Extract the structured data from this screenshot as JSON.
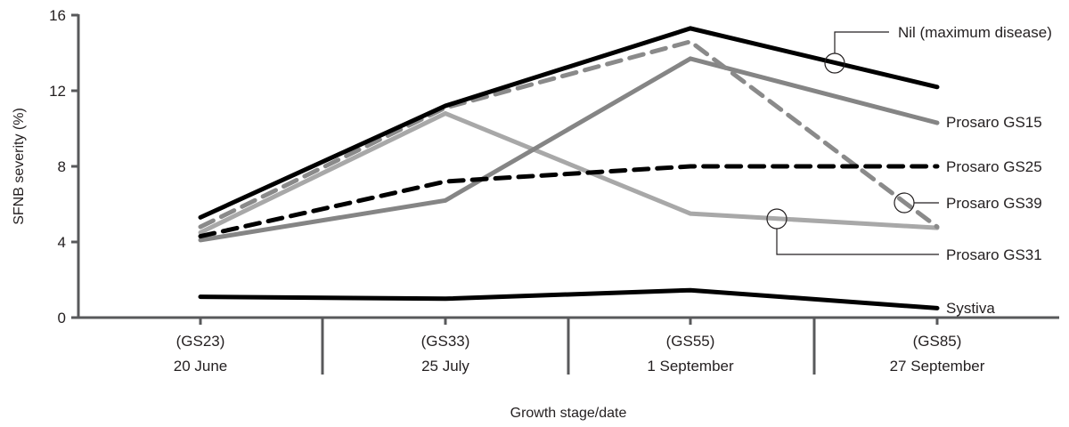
{
  "chart_data": {
    "type": "line",
    "title": "",
    "xlabel": "Growth stage/date",
    "ylabel": "SFNB severity (%)",
    "ylim": [
      0,
      16
    ],
    "yticks": [
      0,
      4,
      8,
      12,
      16
    ],
    "grid": false,
    "legend_position": "inline-right",
    "categories": [
      "(GS23) 20 June",
      "(GS33) 25 July",
      "(GS55) 1 September",
      "(GS85) 27 September"
    ],
    "category_lines": [
      {
        "stage": "(GS23)",
        "date": "20 June"
      },
      {
        "stage": "(GS33)",
        "date": "25 July"
      },
      {
        "stage": "(GS55)",
        "date": "1 September"
      },
      {
        "stage": "(GS85)",
        "date": "27 September"
      }
    ],
    "series": [
      {
        "name": "Nil (maximum disease)",
        "values": [
          5.3,
          11.2,
          15.3,
          12.2
        ],
        "color": "#000000",
        "dash": "solid"
      },
      {
        "name": "Prosaro GS15",
        "values": [
          4.1,
          6.2,
          13.7,
          10.3
        ],
        "color": "#858585",
        "dash": "solid"
      },
      {
        "name": "Prosaro GS25",
        "values": [
          4.3,
          7.2,
          8.0,
          8.0
        ],
        "color": "#000000",
        "dash": "dashed"
      },
      {
        "name": "Prosaro GS39",
        "values": [
          4.8,
          11.1,
          14.6,
          4.8
        ],
        "color": "#8a8a8a",
        "dash": "dashed"
      },
      {
        "name": "Prosaro GS31",
        "values": [
          4.5,
          10.8,
          5.5,
          4.75
        ],
        "color": "#a8a8a8",
        "dash": "solid"
      },
      {
        "name": "Systiva",
        "values": [
          1.1,
          1.0,
          1.45,
          0.5
        ],
        "color": "#000000",
        "dash": "solid"
      }
    ]
  },
  "labels": {
    "ylabel": "SFNB severity (%)",
    "xlabel": "Growth stage/date",
    "yticks": [
      "0",
      "4",
      "8",
      "12",
      "16"
    ],
    "cats": [
      {
        "stage": "(GS23)",
        "date": "20 June"
      },
      {
        "stage": "(GS33)",
        "date": "25 July"
      },
      {
        "stage": "(GS55)",
        "date": "1 September"
      },
      {
        "stage": "(GS85)",
        "date": "27 September"
      }
    ],
    "series": {
      "nil": "Nil (maximum disease)",
      "gs15": "Prosaro GS15",
      "gs25": "Prosaro GS25",
      "gs39": "Prosaro GS39",
      "gs31": "Prosaro GS31",
      "systiva": "Systiva"
    }
  }
}
